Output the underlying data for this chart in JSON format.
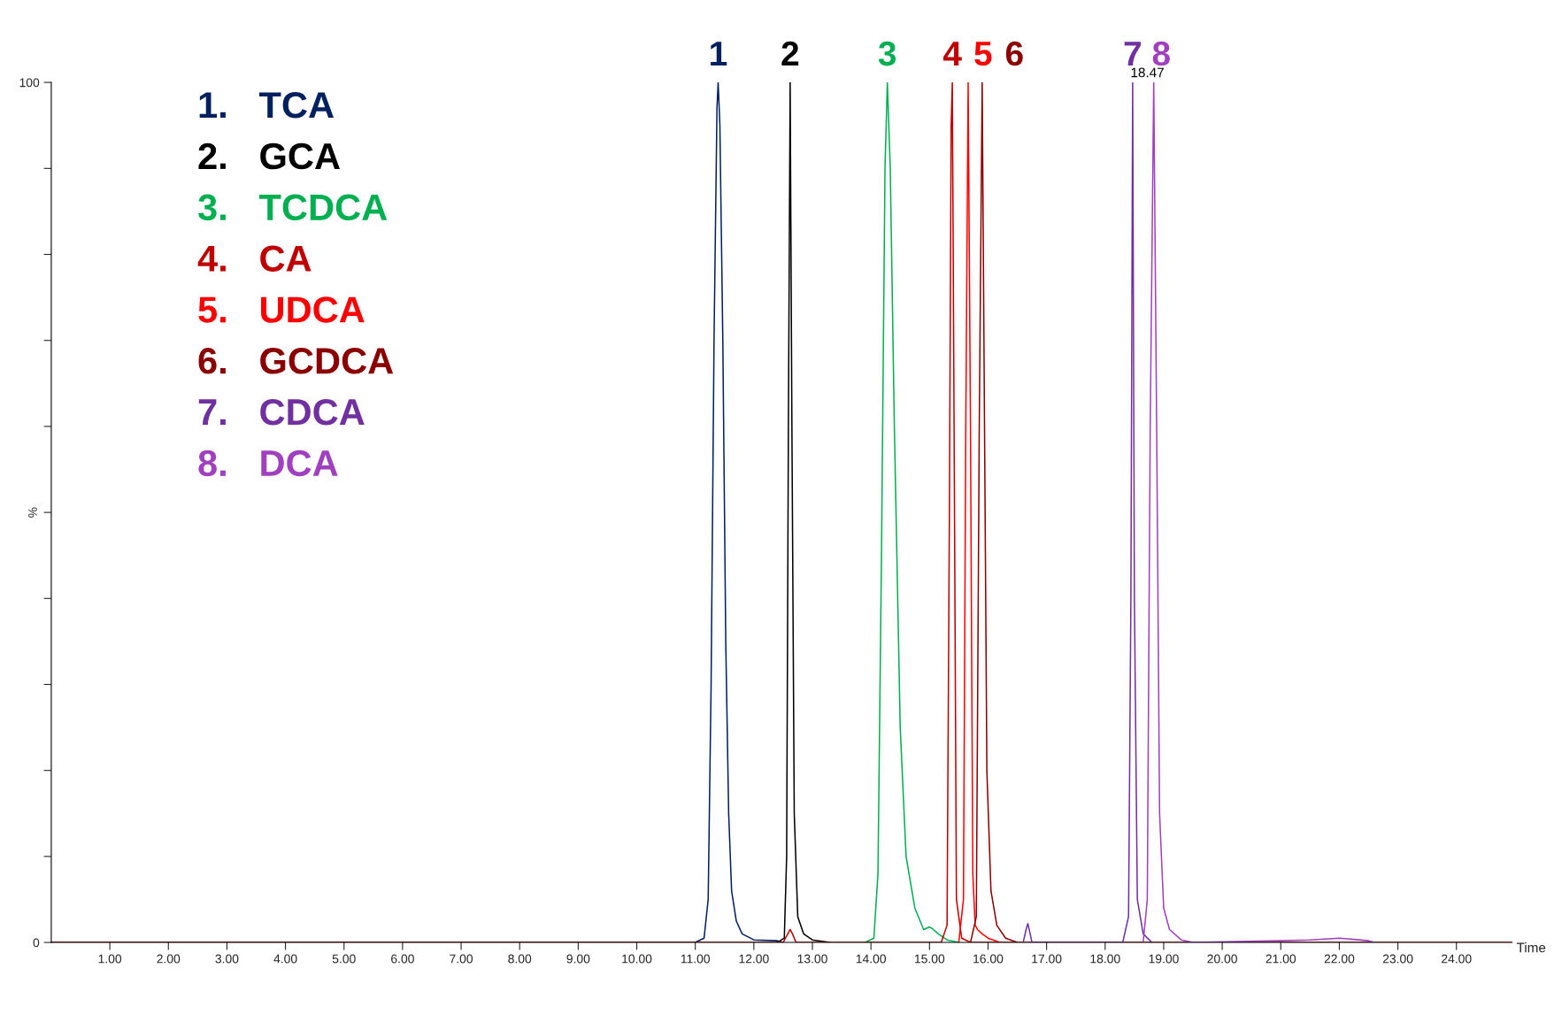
{
  "chart_data": {
    "type": "line",
    "xlabel": "Time",
    "ylabel": "%",
    "xlim": [
      0,
      24.95
    ],
    "ylim": [
      0,
      100
    ],
    "xticks": [
      {
        "value": 1,
        "label": "1.00"
      },
      {
        "value": 2,
        "label": "2.00"
      },
      {
        "value": 3,
        "label": "3.00"
      },
      {
        "value": 4,
        "label": "4.00"
      },
      {
        "value": 5,
        "label": "5.00"
      },
      {
        "value": 6,
        "label": "6.00"
      },
      {
        "value": 7,
        "label": "7.00"
      },
      {
        "value": 8,
        "label": "8.00"
      },
      {
        "value": 9,
        "label": "9.00"
      },
      {
        "value": 10,
        "label": "10.00"
      },
      {
        "value": 11,
        "label": "11.00"
      },
      {
        "value": 12,
        "label": "12.00"
      },
      {
        "value": 13,
        "label": "13.00"
      },
      {
        "value": 14,
        "label": "14.00"
      },
      {
        "value": 15,
        "label": "15.00"
      },
      {
        "value": 16,
        "label": "16.00"
      },
      {
        "value": 17,
        "label": "17.00"
      },
      {
        "value": 18,
        "label": "18.00"
      },
      {
        "value": 19,
        "label": "19.00"
      },
      {
        "value": 20,
        "label": "20.00"
      },
      {
        "value": 21,
        "label": "21.00"
      },
      {
        "value": 22,
        "label": "22.00"
      },
      {
        "value": 23,
        "label": "23.00"
      },
      {
        "value": 24,
        "label": "24.00"
      }
    ],
    "yticks": [
      0,
      {
        "value": 10,
        "label": null
      },
      {
        "value": 20,
        "label": null
      },
      {
        "value": 30,
        "label": null
      },
      {
        "value": 40,
        "label": null
      },
      {
        "value": 50,
        "label": null
      },
      {
        "value": 60,
        "label": null
      },
      {
        "value": 70,
        "label": null
      },
      {
        "value": 80,
        "label": null
      },
      {
        "value": 90,
        "label": null
      },
      100
    ],
    "legend": "top left",
    "grid": false,
    "series": [
      {
        "name": "1.   TCA",
        "color": "#002060",
        "x": [
          0,
          11.0,
          11.15,
          11.22,
          11.27,
          11.32,
          11.37,
          11.39,
          11.42,
          11.47,
          11.52,
          11.57,
          11.62,
          11.7,
          11.8,
          12.0,
          12.4,
          12.5
        ],
        "values": [
          0,
          0,
          0.5,
          5,
          30,
          70,
          97,
          100,
          95,
          70,
          35,
          15,
          6,
          2.5,
          1,
          0.3,
          0.2,
          0
        ]
      },
      {
        "name": "2.   GCA",
        "color": "#000000",
        "x": [
          12.4,
          12.52,
          12.56,
          12.59,
          12.62,
          12.65,
          12.69,
          12.75,
          12.85,
          13.0,
          13.3
        ],
        "values": [
          0,
          0.5,
          10,
          60,
          100,
          60,
          15,
          3,
          1,
          0.3,
          0
        ]
      },
      {
        "name": "3.   TCDCA",
        "color": "#00b050",
        "x": [
          13.9,
          14.05,
          14.12,
          14.18,
          14.24,
          14.28,
          14.33,
          14.4,
          14.5,
          14.6,
          14.75,
          14.9,
          15.0,
          15.05,
          15.15,
          15.3,
          15.5
        ],
        "values": [
          0,
          0.5,
          8,
          45,
          90,
          100,
          90,
          60,
          25,
          10,
          4,
          1.5,
          1.8,
          1.6,
          1.0,
          0.3,
          0
        ]
      },
      {
        "name": "4.   CA",
        "color": "#c00000",
        "x": [
          0,
          12.5,
          12.58,
          12.62,
          12.66,
          12.72,
          15.2,
          15.3,
          15.34,
          15.37,
          15.39,
          15.42,
          15.46,
          15.55,
          15.7,
          24.95
        ],
        "values": [
          0,
          0,
          1,
          1.5,
          1,
          0,
          0,
          2,
          50,
          95,
          100,
          60,
          5,
          0.5,
          0,
          0
        ]
      },
      {
        "name": "5.   UDCA",
        "color": "#ff0000",
        "x": [
          15.5,
          15.58,
          15.62,
          15.66,
          15.7,
          15.74,
          15.78,
          15.82,
          15.9,
          16.0,
          16.2
        ],
        "values": [
          0,
          5,
          60,
          100,
          60,
          8,
          2,
          1.5,
          1,
          0.5,
          0
        ]
      },
      {
        "name": "6.   GCDCA",
        "color": "#8b0000",
        "x": [
          15.7,
          15.8,
          15.85,
          15.9,
          15.93,
          15.98,
          16.05,
          16.15,
          16.3,
          16.5
        ],
        "values": [
          0,
          3,
          60,
          100,
          70,
          20,
          6,
          2,
          0.5,
          0
        ]
      },
      {
        "name": "7.   CDCA",
        "color": "#7030a0",
        "x": [
          16.6,
          16.65,
          16.68,
          16.72,
          16.75,
          18.3,
          18.4,
          18.44,
          18.47,
          18.5,
          18.55,
          18.65,
          18.8
        ],
        "values": [
          0,
          1.5,
          2.2,
          1,
          0,
          0,
          3,
          40,
          100,
          40,
          5,
          1,
          0
        ]
      },
      {
        "name": "8.   DCA",
        "color": "#a040c0",
        "x": [
          18.65,
          18.72,
          18.77,
          18.83,
          18.88,
          18.93,
          19.0,
          19.1,
          19.3,
          19.5,
          21.0,
          21.5,
          22.0,
          22.5,
          22.6
        ],
        "values": [
          0,
          5,
          60,
          100,
          60,
          15,
          4,
          1.5,
          0.3,
          0,
          0.2,
          0.3,
          0.5,
          0.2,
          0
        ]
      }
    ],
    "annotations": [
      {
        "text": "1",
        "x": 11.39,
        "y": 100
      },
      {
        "text": "2",
        "x": 12.62,
        "y": 100
      },
      {
        "text": "3",
        "x": 14.28,
        "y": 100
      },
      {
        "text": "4",
        "x": 15.39,
        "y": 100
      },
      {
        "text": "5",
        "x": 15.66,
        "y": 100
      },
      {
        "text": "6",
        "x": 15.9,
        "y": 100
      },
      {
        "text": "7",
        "x": 18.47,
        "y": 100
      },
      {
        "text": "8",
        "x": 18.83,
        "y": 100
      },
      {
        "text": "18.47",
        "x": 18.47,
        "y": 100
      }
    ]
  }
}
